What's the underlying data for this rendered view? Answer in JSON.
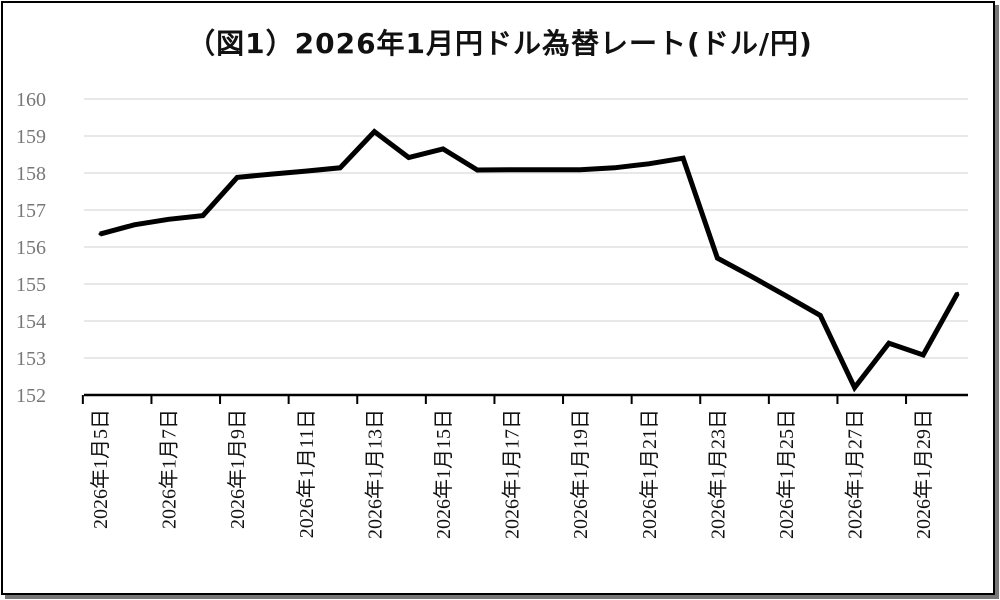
{
  "chart_data": {
    "type": "line",
    "title": "（図1）2026年1月円ドル為替レート(ドル/円)",
    "xlabel": "",
    "ylabel": "",
    "ylim": [
      152,
      160
    ],
    "yticks": [
      "160",
      "159",
      "158",
      "157",
      "156",
      "155",
      "154",
      "153",
      "152"
    ],
    "grid": true,
    "legend": "none",
    "line_color": "#000000",
    "x_tick_labels": [
      "2026年1月5日",
      "2026年1月7日",
      "2026年1月9日",
      "2026年1月11日",
      "2026年1月13日",
      "2026年1月15日",
      "2026年1月17日",
      "2026年1月19日",
      "2026年1月21日",
      "2026年1月23日",
      "2026年1月25日",
      "2026年1月27日",
      "2026年1月29日"
    ],
    "x": [
      "2026-01-05",
      "2026-01-06",
      "2026-01-07",
      "2026-01-08",
      "2026-01-09",
      "2026-01-10",
      "2026-01-11",
      "2026-01-12",
      "2026-01-13",
      "2026-01-14",
      "2026-01-15",
      "2026-01-16",
      "2026-01-17",
      "2026-01-18",
      "2026-01-19",
      "2026-01-20",
      "2026-01-21",
      "2026-01-22",
      "2026-01-23",
      "2026-01-24",
      "2026-01-25",
      "2026-01-26",
      "2026-01-27",
      "2026-01-28",
      "2026-01-29",
      "2026-01-30"
    ],
    "values": [
      156.35,
      156.6,
      156.75,
      156.85,
      157.88,
      157.97,
      158.05,
      158.14,
      159.12,
      158.42,
      158.65,
      158.08,
      158.09,
      158.09,
      158.09,
      158.14,
      158.25,
      158.4,
      155.7,
      155.2,
      154.68,
      154.15,
      152.2,
      153.4,
      153.08,
      154.75
    ]
  }
}
